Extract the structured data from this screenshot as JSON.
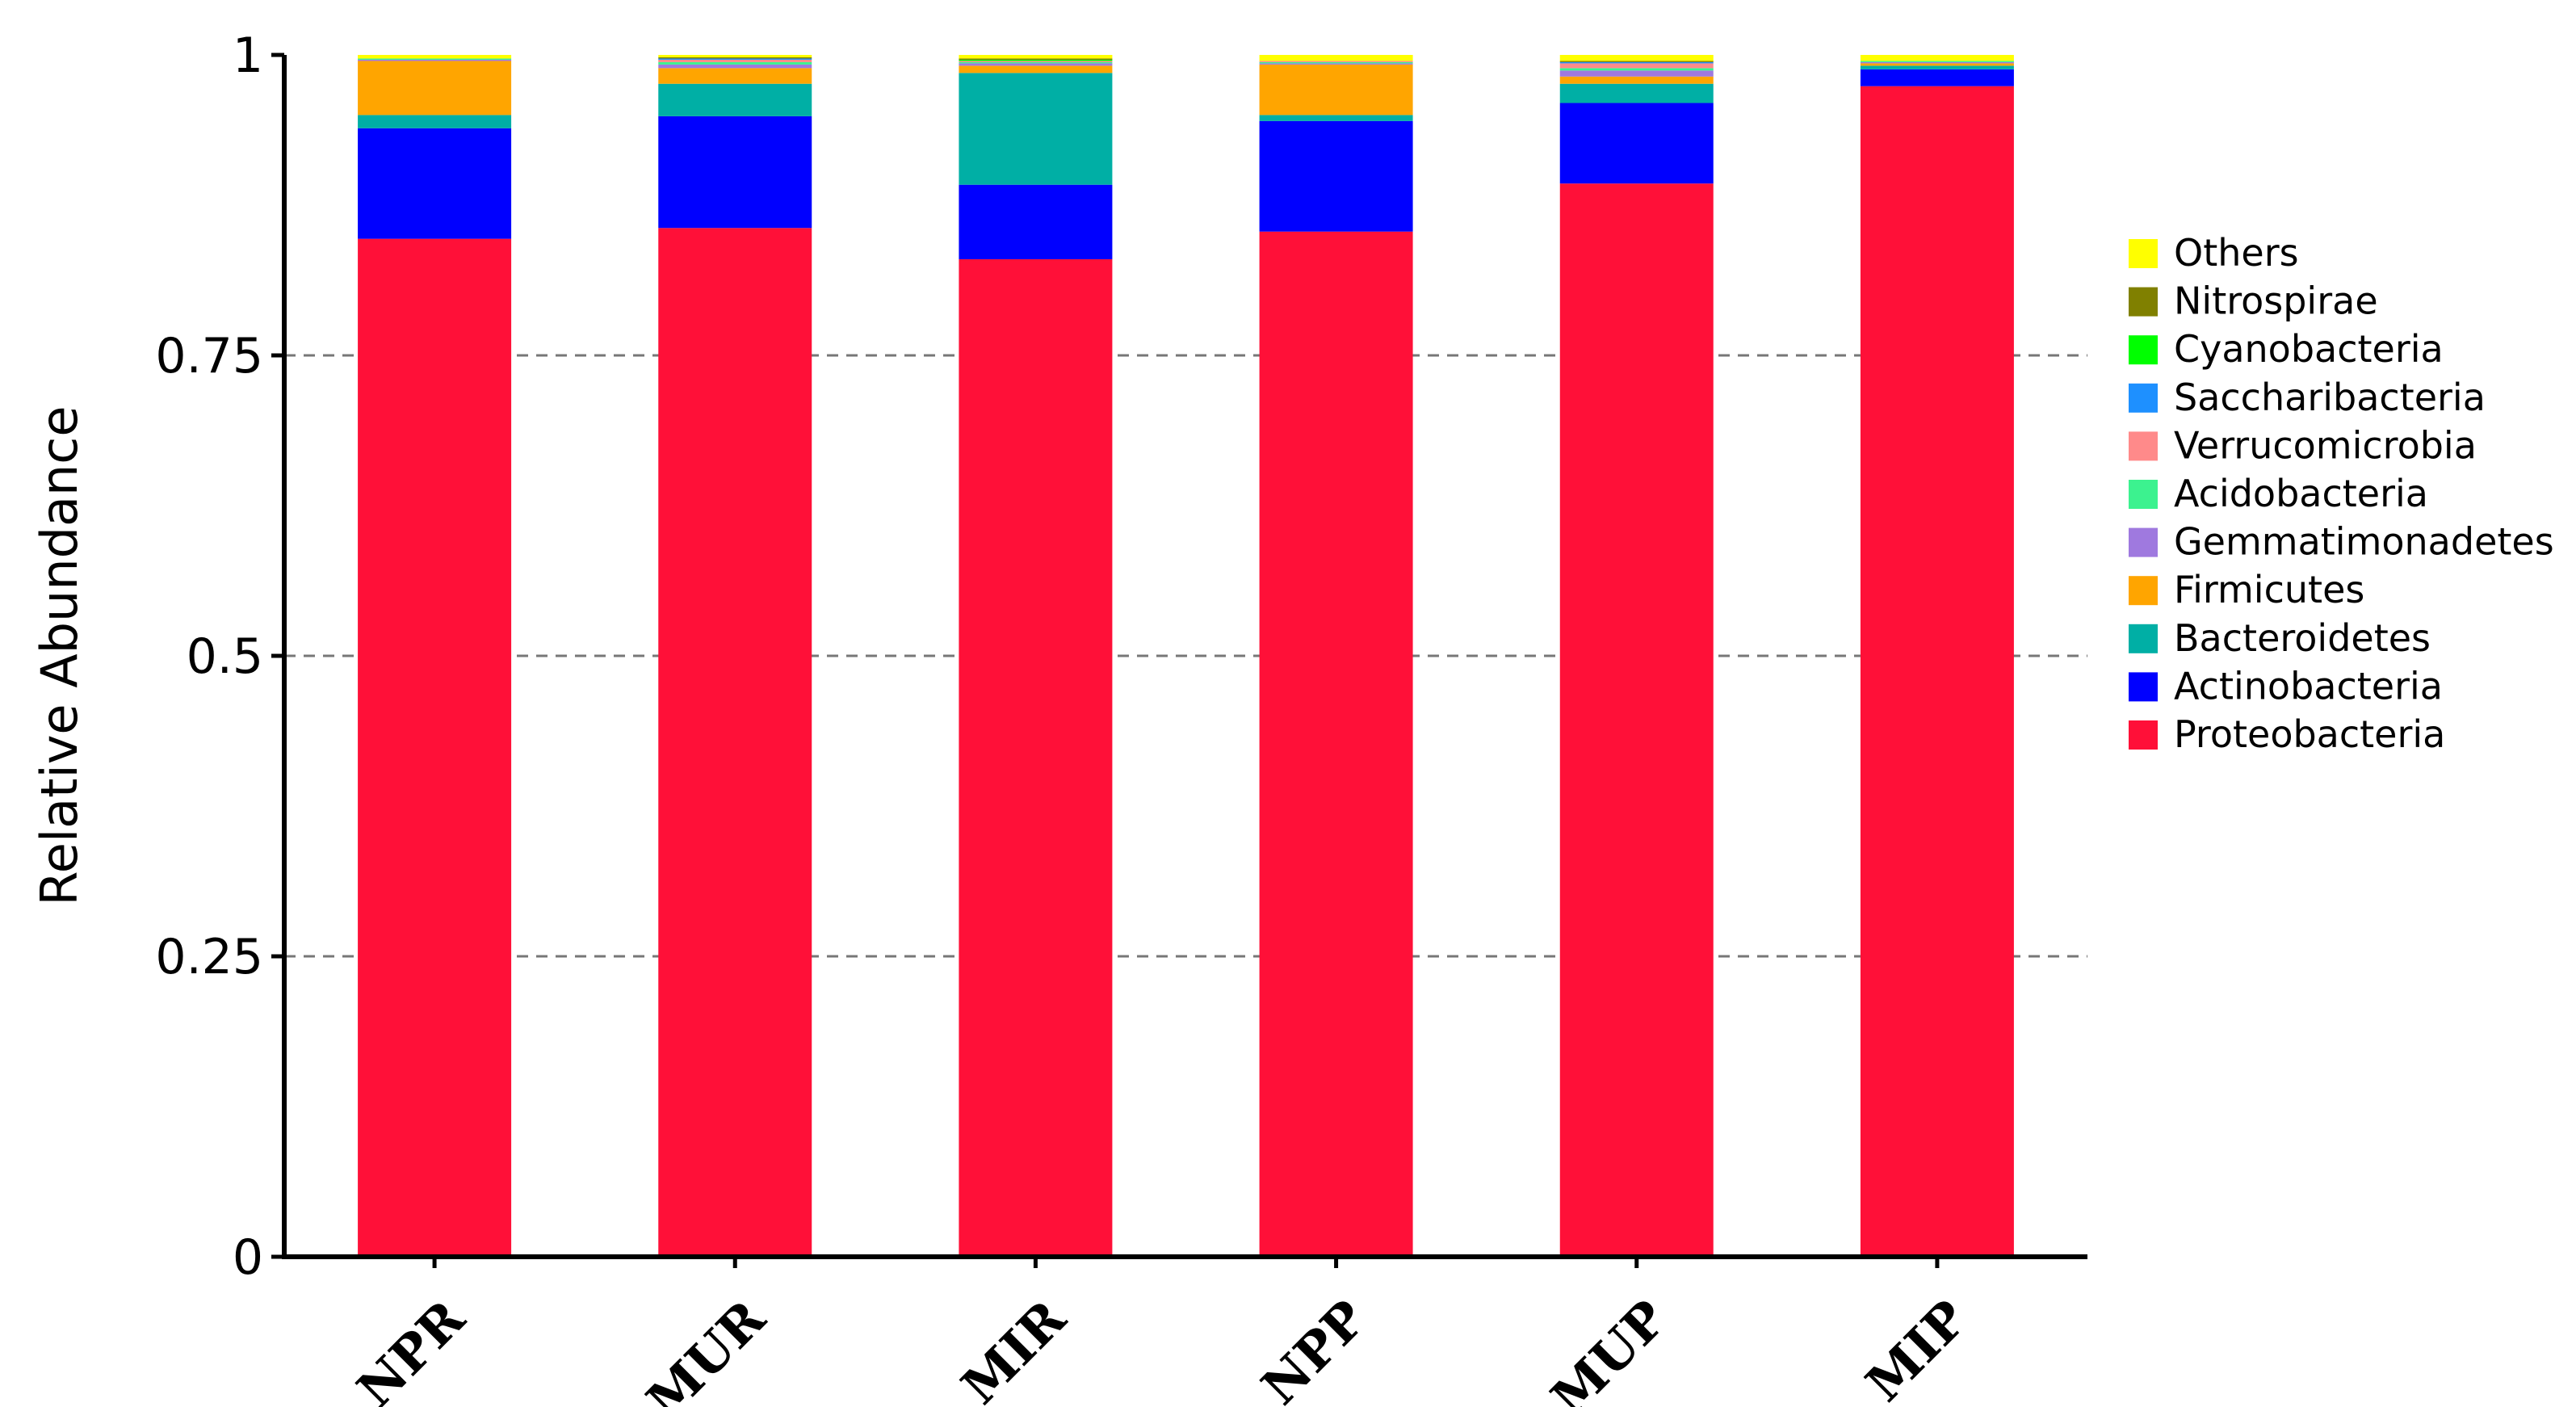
{
  "chart_data": {
    "type": "bar",
    "stacked": true,
    "title": "",
    "xlabel": "",
    "ylabel": "Relative Abundance",
    "ylim": [
      0,
      1
    ],
    "yticks": [
      {
        "value": 0,
        "label": "0"
      },
      {
        "value": 0.25,
        "label": "0.25"
      },
      {
        "value": 0.5,
        "label": "0.5"
      },
      {
        "value": 0.75,
        "label": "0.75"
      },
      {
        "value": 1,
        "label": "1"
      }
    ],
    "grid": "horizontal dashed",
    "legend_position": "right",
    "categories": [
      "NPR",
      "MUR",
      "MIR",
      "NPP",
      "MUP",
      "MIP"
    ],
    "series": [
      {
        "name": "Proteobacteria",
        "color": "#FF1038",
        "values": [
          0.847,
          0.856,
          0.83,
          0.853,
          0.893,
          0.974
        ]
      },
      {
        "name": "Actinobacteria",
        "color": "#0000FF",
        "values": [
          0.092,
          0.093,
          0.062,
          0.092,
          0.067,
          0.014
        ]
      },
      {
        "name": "Bacteroidetes",
        "color": "#00AFA5",
        "values": [
          0.011,
          0.027,
          0.093,
          0.005,
          0.016,
          0.003
        ]
      },
      {
        "name": "Firmicutes",
        "color": "#FFA500",
        "values": [
          0.045,
          0.013,
          0.006,
          0.042,
          0.006,
          0.002
        ]
      },
      {
        "name": "Gemmatimonadetes",
        "color": "#9F79DF",
        "values": [
          0.001,
          0.003,
          0.002,
          0.001,
          0.005,
          0.001
        ]
      },
      {
        "name": "Acidobacteria",
        "color": "#3CF28F",
        "values": [
          0.001,
          0.002,
          0.001,
          0.001,
          0.002,
          0.001
        ]
      },
      {
        "name": "Verrucomicrobia",
        "color": "#FF8A8A",
        "values": [
          0.0,
          0.002,
          0.001,
          0.001,
          0.004,
          0.0
        ]
      },
      {
        "name": "Saccharibacteria",
        "color": "#1E90FF",
        "values": [
          0.0,
          0.001,
          0.0,
          0.0,
          0.001,
          0.0
        ]
      },
      {
        "name": "Cyanobacteria",
        "color": "#00FF00",
        "values": [
          0.0,
          0.0,
          0.001,
          0.0,
          0.0,
          0.0
        ]
      },
      {
        "name": "Nitrospirae",
        "color": "#808000",
        "values": [
          0.0,
          0.001,
          0.001,
          0.0,
          0.001,
          0.0
        ]
      },
      {
        "name": "Others",
        "color": "#FFFF00",
        "values": [
          0.003,
          0.002,
          0.003,
          0.005,
          0.005,
          0.005
        ]
      }
    ]
  }
}
